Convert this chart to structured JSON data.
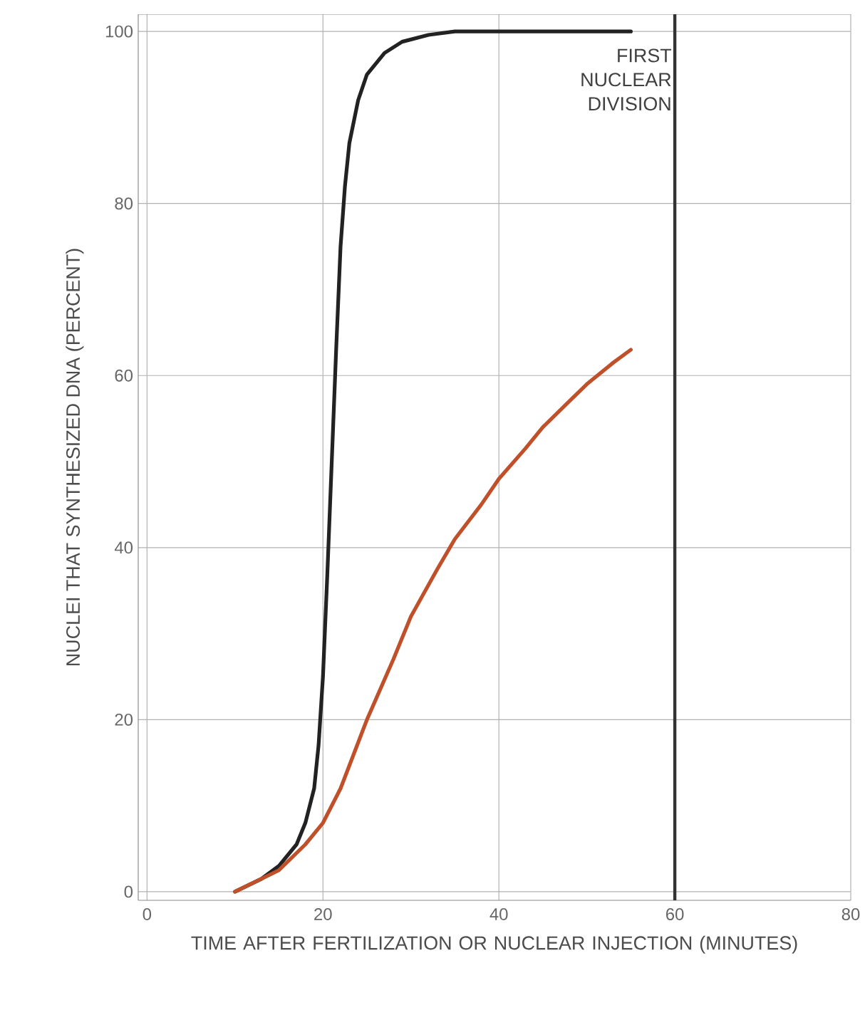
{
  "chart_data": {
    "type": "line",
    "xlabel": "TIME AFTER FERTILIZATION OR NUCLEAR INJECTION (MINUTES)",
    "ylabel": "NUCLEI THAT SYNTHESIZED DNA (PERCENT)",
    "xlim": [
      -1,
      80
    ],
    "ylim": [
      -1,
      102
    ],
    "xticks": [
      0,
      20,
      40,
      60,
      80
    ],
    "yticks": [
      0,
      20,
      40,
      60,
      80,
      100
    ],
    "grid": true,
    "series": [
      {
        "color": "#222222",
        "x": [
          10,
          13,
          15,
          17,
          18,
          19,
          19.5,
          20,
          20.5,
          21,
          21.5,
          22,
          22.5,
          23,
          24,
          25,
          27,
          29,
          32,
          35,
          40,
          45,
          50,
          55
        ],
        "values": [
          0,
          1.5,
          3,
          5.5,
          8,
          12,
          17,
          25,
          37,
          50,
          63,
          75,
          82,
          87,
          92,
          95,
          97.5,
          98.8,
          99.6,
          100,
          100,
          100,
          100,
          100
        ]
      },
      {
        "color": "#c0502a",
        "x": [
          10,
          13,
          15,
          18,
          20,
          22,
          25,
          28,
          30,
          33,
          35,
          38,
          40,
          43,
          45,
          48,
          50,
          53,
          55
        ],
        "values": [
          0,
          1.5,
          2.5,
          5.5,
          8,
          12,
          20,
          27,
          32,
          37.5,
          41,
          45,
          48,
          51.5,
          54,
          57,
          59,
          61.5,
          63
        ]
      }
    ],
    "ref_lines": [
      {
        "axis": "x",
        "value": 60,
        "label": "FIRST NUCLEAR DIVISION",
        "color": "#333333"
      }
    ]
  }
}
